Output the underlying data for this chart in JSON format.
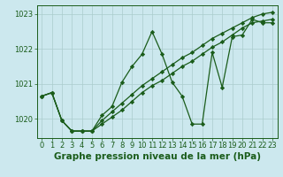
{
  "title": "Graphe pression niveau de la mer (hPa)",
  "bg_color": "#cce8ee",
  "line_color": "#1a5c1a",
  "grid_color": "#aacccc",
  "ylim": [
    1019.45,
    1023.25
  ],
  "xlim": [
    -0.5,
    23.5
  ],
  "yticks": [
    1020,
    1021,
    1022,
    1023
  ],
  "xticks": [
    0,
    1,
    2,
    3,
    4,
    5,
    6,
    7,
    8,
    9,
    10,
    11,
    12,
    13,
    14,
    15,
    16,
    17,
    18,
    19,
    20,
    21,
    22,
    23
  ],
  "series": [
    [
      1020.65,
      1020.75,
      1019.95,
      1019.65,
      1019.65,
      1019.65,
      1019.85,
      1020.05,
      1020.25,
      1020.5,
      1020.75,
      1020.95,
      1021.1,
      1021.3,
      1021.5,
      1021.65,
      1021.85,
      1022.05,
      1022.2,
      1022.4,
      1022.6,
      1022.75,
      1022.8,
      1022.85
    ],
    [
      1020.65,
      1020.75,
      1019.95,
      1019.65,
      1019.65,
      1019.65,
      1019.95,
      1020.2,
      1020.45,
      1020.7,
      1020.95,
      1021.15,
      1021.35,
      1021.55,
      1021.75,
      1021.9,
      1022.1,
      1022.3,
      1022.45,
      1022.6,
      1022.75,
      1022.9,
      1023.0,
      1023.05
    ],
    [
      1020.65,
      1020.75,
      1019.95,
      1019.65,
      1019.65,
      1019.65,
      1020.1,
      1020.35,
      1021.05,
      1021.5,
      1021.85,
      1022.5,
      1021.85,
      1021.05,
      1020.65,
      1019.85,
      1019.85,
      1021.9,
      1020.9,
      1022.35,
      1022.4,
      1022.85,
      1022.75,
      1022.75
    ]
  ],
  "marker": "D",
  "marker_size": 2.2,
  "linewidth": 0.9,
  "xlabel_fontsize": 7.5,
  "tick_fontsize": 6.0,
  "tick_color": "#1a5c1a",
  "label_color": "#1a5c1a"
}
